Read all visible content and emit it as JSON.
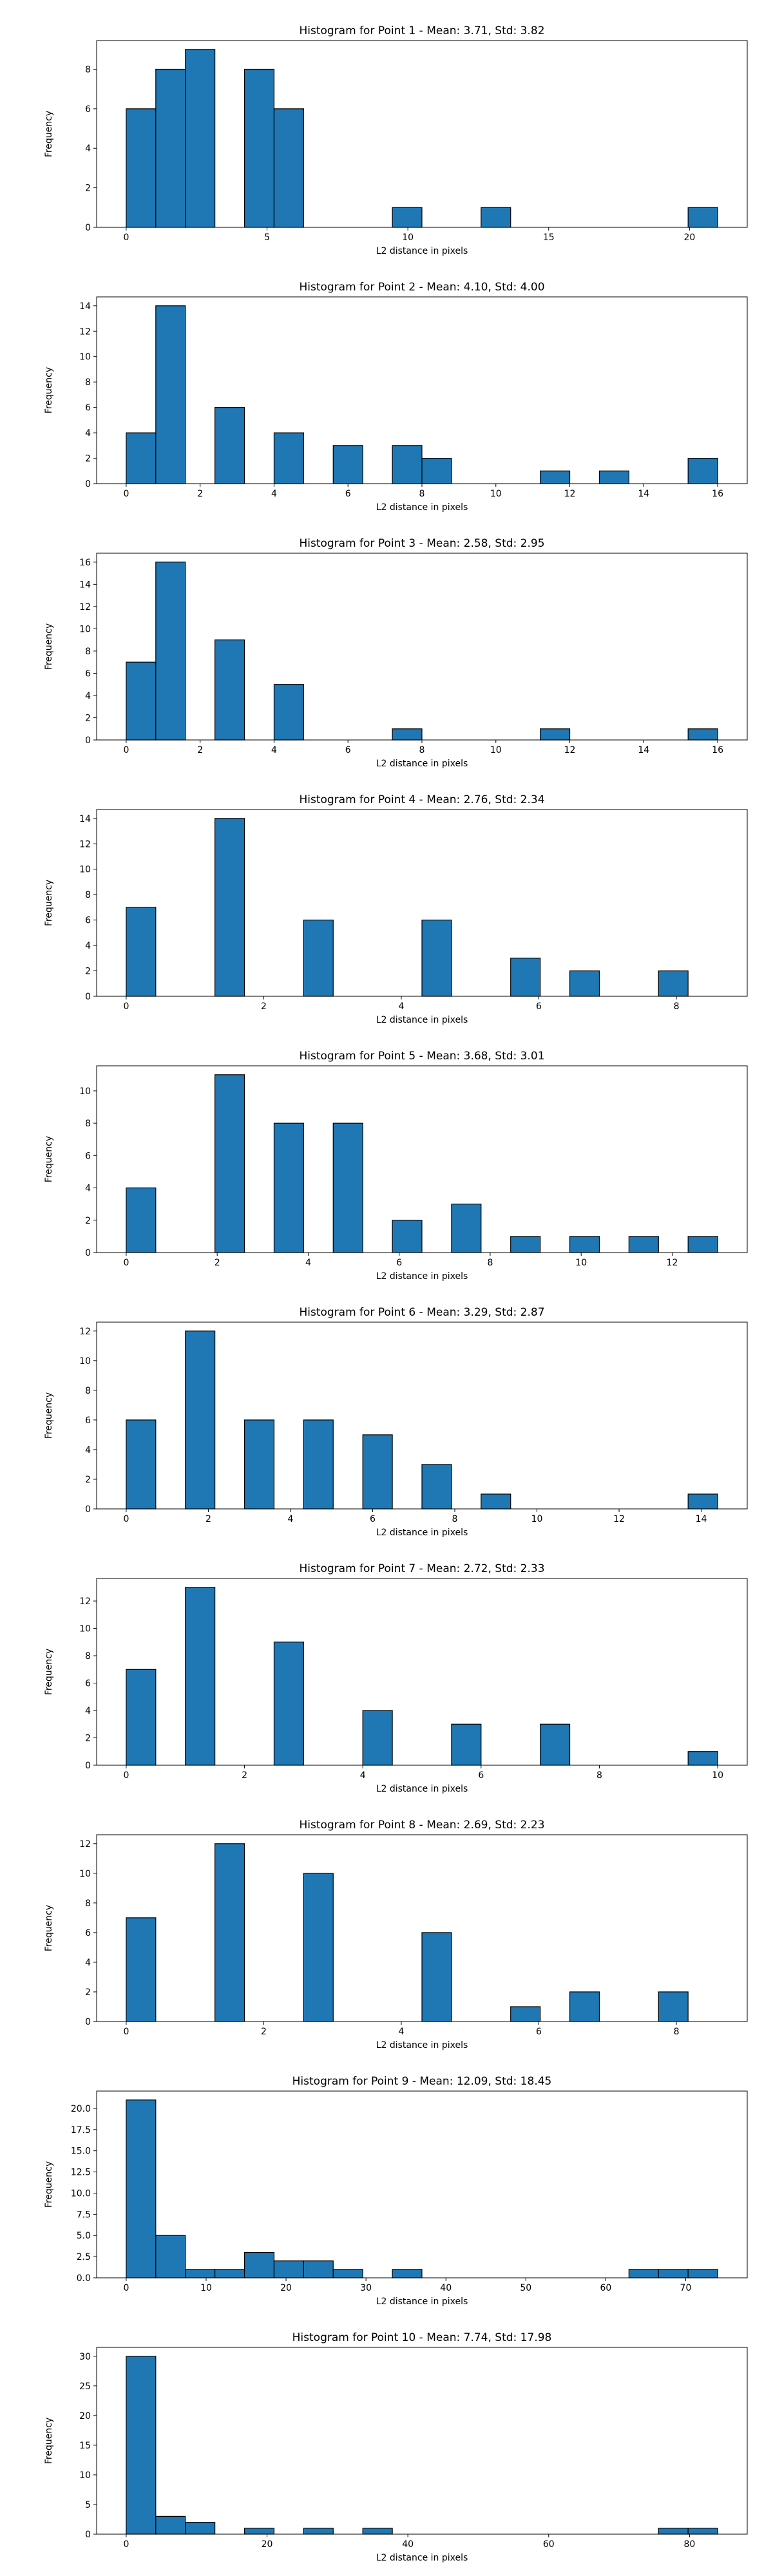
{
  "chart_data": [
    {
      "type": "bar",
      "title": "Histogram for Point 1 - Mean: 3.71, Std: 3.82",
      "xlabel": "L2 distance in pixels",
      "ylabel": "Frequency",
      "xlim": [
        -1.05,
        22.05
      ],
      "ylim": [
        0,
        9.45
      ],
      "xticks": [
        0,
        5,
        10,
        15,
        20
      ],
      "yticks": [
        0,
        2,
        4,
        6,
        8
      ],
      "grid": false,
      "bin_edges": [
        0,
        1.05,
        2.1,
        3.15,
        4.2,
        5.25,
        6.3,
        7.35,
        8.4,
        9.45,
        10.5,
        11.55,
        12.6,
        13.65,
        14.7,
        15.75,
        16.8,
        17.85,
        18.9,
        19.95,
        21.0
      ],
      "values": [
        6,
        8,
        9,
        0,
        8,
        6,
        0,
        0,
        0,
        1,
        0,
        0,
        1,
        0,
        0,
        0,
        0,
        0,
        0,
        1
      ]
    },
    {
      "type": "bar",
      "title": "Histogram for Point 2 - Mean: 4.10, Std: 4.00",
      "xlabel": "L2 distance in pixels",
      "ylabel": "Frequency",
      "xlim": [
        -0.8,
        16.8
      ],
      "ylim": [
        0,
        14.7
      ],
      "xticks": [
        0,
        2,
        4,
        6,
        8,
        10,
        12,
        14,
        16
      ],
      "yticks": [
        0,
        2,
        4,
        6,
        8,
        10,
        12,
        14
      ],
      "grid": false,
      "bin_edges": [
        0,
        0.8,
        1.6,
        2.4,
        3.2,
        4.0,
        4.8,
        5.6,
        6.4,
        7.2,
        8.0,
        8.8,
        9.6,
        10.4,
        11.2,
        12.0,
        12.8,
        13.6,
        14.4,
        15.2,
        16.0
      ],
      "values": [
        4,
        14,
        0,
        6,
        0,
        4,
        0,
        3,
        0,
        3,
        2,
        0,
        0,
        0,
        1,
        0,
        1,
        0,
        0,
        2
      ]
    },
    {
      "type": "bar",
      "title": "Histogram for Point 3 - Mean: 2.58, Std: 2.95",
      "xlabel": "L2 distance in pixels",
      "ylabel": "Frequency",
      "xlim": [
        -0.8,
        16.8
      ],
      "ylim": [
        0,
        16.8
      ],
      "xticks": [
        0,
        2,
        4,
        6,
        8,
        10,
        12,
        14,
        16
      ],
      "yticks": [
        0,
        2,
        4,
        6,
        8,
        10,
        12,
        14,
        16
      ],
      "grid": false,
      "bin_edges": [
        0,
        0.8,
        1.6,
        2.4,
        3.2,
        4.0,
        4.8,
        5.6,
        6.4,
        7.2,
        8.0,
        8.8,
        9.6,
        10.4,
        11.2,
        12.0,
        12.8,
        13.6,
        14.4,
        15.2,
        16.0
      ],
      "values": [
        7,
        16,
        0,
        9,
        0,
        5,
        0,
        0,
        0,
        1,
        0,
        0,
        0,
        0,
        1,
        0,
        0,
        0,
        0,
        1
      ]
    },
    {
      "type": "bar",
      "title": "Histogram for Point 4 - Mean: 2.76, Std: 2.34",
      "xlabel": "L2 distance in pixels",
      "ylabel": "Frequency",
      "xlim": [
        -0.43,
        9.03
      ],
      "ylim": [
        0,
        14.7
      ],
      "xticks": [
        0,
        2,
        4,
        6,
        8
      ],
      "yticks": [
        0,
        2,
        4,
        6,
        8,
        10,
        12,
        14
      ],
      "grid": false,
      "bin_edges": [
        0,
        0.43,
        0.86,
        1.29,
        1.72,
        2.15,
        2.58,
        3.01,
        3.44,
        3.87,
        4.3,
        4.73,
        5.16,
        5.59,
        6.02,
        6.45,
        6.88,
        7.31,
        7.74,
        8.17,
        8.6
      ],
      "values": [
        7,
        0,
        0,
        14,
        0,
        0,
        6,
        0,
        0,
        0,
        6,
        0,
        0,
        3,
        0,
        2,
        0,
        0,
        2,
        0
      ]
    },
    {
      "type": "bar",
      "title": "Histogram for Point 5 - Mean: 3.68, Std: 3.01",
      "xlabel": "L2 distance in pixels",
      "ylabel": "Frequency",
      "xlim": [
        -0.65,
        13.65
      ],
      "ylim": [
        0,
        11.55
      ],
      "xticks": [
        0,
        2,
        4,
        6,
        8,
        10,
        12
      ],
      "yticks": [
        0,
        2,
        4,
        6,
        8,
        10
      ],
      "grid": false,
      "bin_edges": [
        0,
        0.65,
        1.3,
        1.95,
        2.6,
        3.25,
        3.9,
        4.55,
        5.2,
        5.85,
        6.5,
        7.15,
        7.8,
        8.45,
        9.1,
        9.75,
        10.4,
        11.05,
        11.7,
        12.35,
        13.0
      ],
      "values": [
        4,
        0,
        0,
        11,
        0,
        8,
        0,
        8,
        0,
        2,
        0,
        3,
        0,
        1,
        0,
        1,
        0,
        1,
        0,
        1
      ]
    },
    {
      "type": "bar",
      "title": "Histogram for Point 6 - Mean: 3.29, Std: 2.87",
      "xlabel": "L2 distance in pixels",
      "ylabel": "Frequency",
      "xlim": [
        -0.72,
        15.12
      ],
      "ylim": [
        0,
        12.6
      ],
      "xticks": [
        0,
        2,
        4,
        6,
        8,
        10,
        12,
        14
      ],
      "yticks": [
        0,
        2,
        4,
        6,
        8,
        10,
        12
      ],
      "grid": false,
      "bin_edges": [
        0,
        0.72,
        1.44,
        2.16,
        2.88,
        3.6,
        4.32,
        5.04,
        5.76,
        6.48,
        7.2,
        7.92,
        8.64,
        9.36,
        10.08,
        10.8,
        11.52,
        12.24,
        12.96,
        13.68,
        14.4
      ],
      "values": [
        6,
        0,
        12,
        0,
        6,
        0,
        6,
        0,
        5,
        0,
        3,
        0,
        1,
        0,
        0,
        0,
        0,
        0,
        0,
        1
      ]
    },
    {
      "type": "bar",
      "title": "Histogram for Point 7 - Mean: 2.72, Std: 2.33",
      "xlabel": "L2 distance in pixels",
      "ylabel": "Frequency",
      "xlim": [
        -0.5,
        10.5
      ],
      "ylim": [
        0,
        13.65
      ],
      "xticks": [
        0,
        2,
        4,
        6,
        8,
        10
      ],
      "yticks": [
        0,
        2,
        4,
        6,
        8,
        10,
        12
      ],
      "grid": false,
      "bin_edges": [
        0,
        0.5,
        1.0,
        1.5,
        2.0,
        2.5,
        3.0,
        3.5,
        4.0,
        4.5,
        5.0,
        5.5,
        6.0,
        6.5,
        7.0,
        7.5,
        8.0,
        8.5,
        9.0,
        9.5,
        10.0
      ],
      "values": [
        7,
        0,
        13,
        0,
        0,
        9,
        0,
        0,
        4,
        0,
        0,
        3,
        0,
        0,
        3,
        0,
        0,
        0,
        0,
        1
      ]
    },
    {
      "type": "bar",
      "title": "Histogram for Point 8 - Mean: 2.69, Std: 2.23",
      "xlabel": "L2 distance in pixels",
      "ylabel": "Frequency",
      "xlim": [
        -0.43,
        9.03
      ],
      "ylim": [
        0,
        12.6
      ],
      "xticks": [
        0,
        2,
        4,
        6,
        8
      ],
      "yticks": [
        0,
        2,
        4,
        6,
        8,
        10,
        12
      ],
      "grid": false,
      "bin_edges": [
        0,
        0.43,
        0.86,
        1.29,
        1.72,
        2.15,
        2.58,
        3.01,
        3.44,
        3.87,
        4.3,
        4.73,
        5.16,
        5.59,
        6.02,
        6.45,
        6.88,
        7.31,
        7.74,
        8.17,
        8.6
      ],
      "values": [
        7,
        0,
        0,
        12,
        0,
        0,
        10,
        0,
        0,
        0,
        6,
        0,
        0,
        1,
        0,
        2,
        0,
        0,
        2,
        0
      ]
    },
    {
      "type": "bar",
      "title": "Histogram for Point 9 - Mean: 12.09, Std: 18.45",
      "xlabel": "L2 distance in pixels",
      "ylabel": "Frequency",
      "xlim": [
        -3.7,
        77.7
      ],
      "ylim": [
        0,
        22.05
      ],
      "xticks": [
        0,
        10,
        20,
        30,
        40,
        50,
        60,
        70
      ],
      "yticks": [
        0,
        2.5,
        5,
        7.5,
        10,
        12.5,
        15,
        17.5,
        20
      ],
      "ytick_labels": [
        "0.0",
        "2.5",
        "5.0",
        "7.5",
        "10.0",
        "12.5",
        "15.0",
        "17.5",
        "20.0"
      ],
      "grid": false,
      "bin_edges": [
        0,
        3.7,
        7.4,
        11.1,
        14.8,
        18.5,
        22.2,
        25.9,
        29.6,
        33.3,
        37.0,
        40.7,
        44.4,
        48.1,
        51.8,
        55.5,
        59.2,
        62.9,
        66.6,
        70.3,
        74.0
      ],
      "values": [
        21,
        5,
        1,
        1,
        3,
        2,
        2,
        1,
        0,
        1,
        0,
        0,
        0,
        0,
        0,
        0,
        0,
        1,
        1,
        1
      ]
    },
    {
      "type": "bar",
      "title": "Histogram for Point 10 - Mean: 7.74, Std: 17.98",
      "xlabel": "L2 distance in pixels",
      "ylabel": "Frequency",
      "xlim": [
        -4.2,
        88.2
      ],
      "ylim": [
        0,
        31.5
      ],
      "xticks": [
        0,
        20,
        40,
        60,
        80
      ],
      "yticks": [
        0,
        5,
        10,
        15,
        20,
        25,
        30
      ],
      "grid": false,
      "bin_edges": [
        0,
        4.2,
        8.4,
        12.6,
        16.8,
        21.0,
        25.2,
        29.4,
        33.6,
        37.8,
        42.0,
        46.2,
        50.4,
        54.6,
        58.8,
        63.0,
        67.2,
        71.4,
        75.6,
        79.8,
        84.0
      ],
      "values": [
        30,
        3,
        2,
        0,
        1,
        0,
        1,
        0,
        1,
        0,
        0,
        0,
        0,
        0,
        0,
        0,
        0,
        0,
        1,
        1
      ]
    }
  ],
  "colors": {
    "bar_fill": "#1f77b4",
    "bar_edge": "#000000",
    "axes": "#000000",
    "background": "#ffffff"
  }
}
